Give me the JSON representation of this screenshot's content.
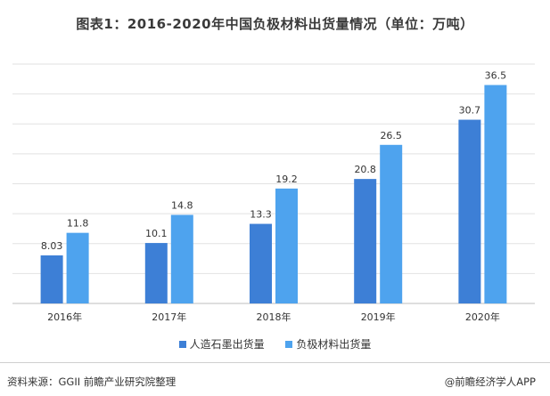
{
  "title": "图表1：2016-2020年中国负极材料出货量情况（单位：万吨）",
  "chart_data": {
    "type": "bar",
    "categories": [
      "2016年",
      "2017年",
      "2018年",
      "2019年",
      "2020年"
    ],
    "series": [
      {
        "name": "人造石墨出货量",
        "values": [
          8.03,
          10.1,
          13.3,
          20.8,
          30.7
        ],
        "labels": [
          "8.03",
          "10.1",
          "13.3",
          "20.8",
          "30.7"
        ],
        "color": "#3d7fd6"
      },
      {
        "name": "负极材料出货量",
        "values": [
          11.8,
          14.8,
          19.2,
          26.5,
          36.5
        ],
        "labels": [
          "11.8",
          "14.8",
          "19.2",
          "26.5",
          "36.5"
        ],
        "color": "#4ea3ee"
      }
    ],
    "ylim": [
      0,
      40
    ],
    "grid": true,
    "legend_position": "bottom",
    "gridline_color": "#e2e2e2"
  },
  "footer": {
    "source": "资料来源：GGII 前瞻产业研究院整理",
    "brand": "@前瞻经济学人APP"
  }
}
